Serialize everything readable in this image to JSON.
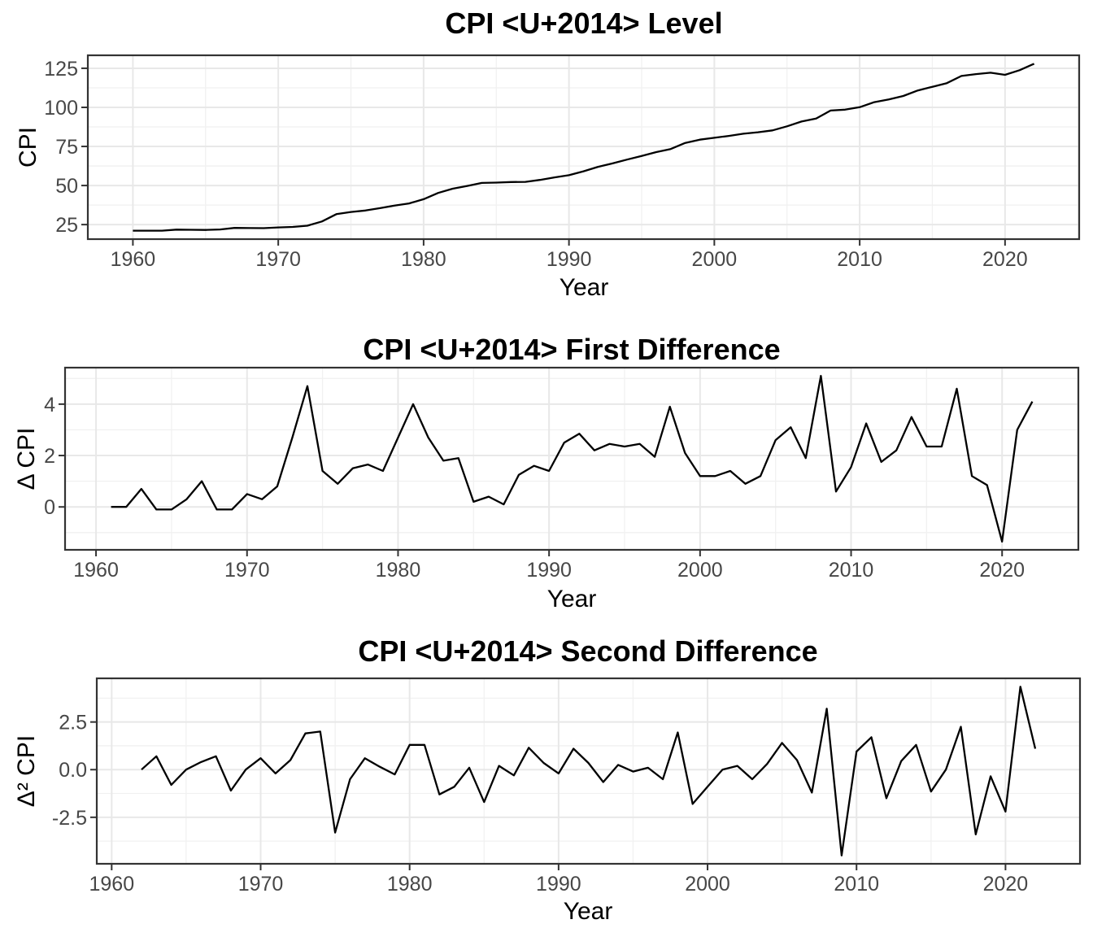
{
  "style": {
    "background": "#ffffff",
    "line_color": "#000000",
    "panel_border_color": "#333333",
    "tick_mark_color": "#333333",
    "major_grid_color": "#e8e8e8",
    "minor_grid_color": "#f1f1f1",
    "tick_label_color": "#474747",
    "title_color": "#000000"
  },
  "chart_data": [
    {
      "type": "line",
      "title": "CPI <U+2014> Level",
      "xlabel": "Year",
      "ylabel": "CPI",
      "grid": "on",
      "legend": "none",
      "xlim": [
        1956.9,
        2025.1
      ],
      "ylim": [
        15.7,
        133.3
      ],
      "x_ticks": [
        1960,
        1970,
        1980,
        1990,
        2000,
        2010,
        2020
      ],
      "x_minor": [
        1965,
        1975,
        1985,
        1995,
        2005,
        2015,
        2025
      ],
      "y_ticks": [
        25,
        50,
        75,
        100,
        125
      ],
      "y_tick_labels": [
        "25",
        "50",
        "75",
        "100",
        "125"
      ],
      "y_minor": [
        37.5,
        62.5,
        87.5,
        112.5
      ],
      "x": [
        1960,
        1961,
        1962,
        1963,
        1964,
        1965,
        1966,
        1967,
        1968,
        1969,
        1970,
        1971,
        1972,
        1973,
        1974,
        1975,
        1976,
        1977,
        1978,
        1979,
        1980,
        1981,
        1982,
        1983,
        1984,
        1985,
        1986,
        1987,
        1988,
        1989,
        1990,
        1991,
        1992,
        1993,
        1994,
        1995,
        1996,
        1997,
        1998,
        1999,
        2000,
        2001,
        2002,
        2003,
        2004,
        2005,
        2006,
        2007,
        2008,
        2009,
        2010,
        2011,
        2012,
        2013,
        2014,
        2015,
        2016,
        2017,
        2018,
        2019,
        2020,
        2021,
        2022
      ],
      "y": [
        21.1,
        21.1,
        21.1,
        21.8,
        21.7,
        21.6,
        21.9,
        22.9,
        22.8,
        22.7,
        23.2,
        23.5,
        24.3,
        27.0,
        31.7,
        33.1,
        34.0,
        35.5,
        37.15,
        38.55,
        41.25,
        45.25,
        47.95,
        49.75,
        51.65,
        51.85,
        52.25,
        52.35,
        53.6,
        55.2,
        56.6,
        59.1,
        61.95,
        64.15,
        66.6,
        68.95,
        71.4,
        73.35,
        77.25,
        79.35,
        80.55,
        81.75,
        83.15,
        84.05,
        85.25,
        87.85,
        90.95,
        92.85,
        97.95,
        98.55,
        100.1,
        103.35,
        105.1,
        107.3,
        110.8,
        113.15,
        115.5,
        120.1,
        121.3,
        122.15,
        120.8,
        123.8,
        127.9
      ]
    },
    {
      "type": "line",
      "title": "CPI <U+2014> First Difference",
      "xlabel": "Year",
      "ylabel": "Δ CPI",
      "grid": "on",
      "legend": "none",
      "xlim": [
        1957.95,
        2025.05
      ],
      "ylim": [
        -1.67,
        5.42
      ],
      "x_ticks": [
        1960,
        1970,
        1980,
        1990,
        2000,
        2010,
        2020
      ],
      "x_minor": [
        1965,
        1975,
        1985,
        1995,
        2005,
        2015,
        2025
      ],
      "y_ticks": [
        0,
        2,
        4
      ],
      "y_tick_labels": [
        "0",
        "2",
        "4"
      ],
      "y_minor": [
        -1,
        1,
        3,
        5
      ],
      "x": [
        1961,
        1962,
        1963,
        1964,
        1965,
        1966,
        1967,
        1968,
        1969,
        1970,
        1971,
        1972,
        1973,
        1974,
        1975,
        1976,
        1977,
        1978,
        1979,
        1980,
        1981,
        1982,
        1983,
        1984,
        1985,
        1986,
        1987,
        1988,
        1989,
        1990,
        1991,
        1992,
        1993,
        1994,
        1995,
        1996,
        1997,
        1998,
        1999,
        2000,
        2001,
        2002,
        2003,
        2004,
        2005,
        2006,
        2007,
        2008,
        2009,
        2010,
        2011,
        2012,
        2013,
        2014,
        2015,
        2016,
        2017,
        2018,
        2019,
        2020,
        2021,
        2022
      ],
      "y": [
        0,
        0,
        0.7,
        -0.1,
        -0.1,
        0.3,
        1,
        -0.1,
        -0.1,
        0.5,
        0.3,
        0.8,
        2.7,
        4.7,
        1.4,
        0.9,
        1.5,
        1.65,
        1.4,
        2.7,
        4,
        2.7,
        1.8,
        1.9,
        0.2,
        0.4,
        0.1,
        1.25,
        1.6,
        1.4,
        2.5,
        2.85,
        2.2,
        2.45,
        2.35,
        2.45,
        1.95,
        3.9,
        2.1,
        1.2,
        1.2,
        1.4,
        0.9,
        1.2,
        2.6,
        3.1,
        1.9,
        5.1,
        0.6,
        1.55,
        3.25,
        1.75,
        2.2,
        3.5,
        2.35,
        2.35,
        4.6,
        1.2,
        0.85,
        -1.35,
        3,
        4.1
      ]
    },
    {
      "type": "line",
      "title": "CPI <U+2014> Second Difference",
      "xlabel": "Year",
      "ylabel": "Δ² CPI",
      "grid": "on",
      "legend": "none",
      "xlim": [
        1959.0,
        2025.0
      ],
      "ylim": [
        -4.94,
        4.79
      ],
      "x_ticks": [
        1960,
        1970,
        1980,
        1990,
        2000,
        2010,
        2020
      ],
      "x_minor": [
        1965,
        1975,
        1985,
        1995,
        2005,
        2015,
        2025
      ],
      "y_ticks": [
        -2.5,
        0,
        2.5
      ],
      "y_tick_labels": [
        "-2.5",
        "0.0",
        "2.5"
      ],
      "y_minor": [
        -3.75,
        -1.25,
        1.25,
        3.75
      ],
      "x": [
        1962,
        1963,
        1964,
        1965,
        1966,
        1967,
        1968,
        1969,
        1970,
        1971,
        1972,
        1973,
        1974,
        1975,
        1976,
        1977,
        1978,
        1979,
        1980,
        1981,
        1982,
        1983,
        1984,
        1985,
        1986,
        1987,
        1988,
        1989,
        1990,
        1991,
        1992,
        1993,
        1994,
        1995,
        1996,
        1997,
        1998,
        1999,
        2000,
        2001,
        2002,
        2003,
        2004,
        2005,
        2006,
        2007,
        2008,
        2009,
        2010,
        2011,
        2012,
        2013,
        2014,
        2015,
        2016,
        2017,
        2018,
        2019,
        2020,
        2021,
        2022
      ],
      "y": [
        0,
        0.7,
        -0.8,
        0,
        0.4,
        0.7,
        -1.1,
        0,
        0.6,
        -0.2,
        0.5,
        1.9,
        2,
        -3.3,
        -0.5,
        0.6,
        0.15,
        -0.25,
        1.3,
        1.3,
        -1.3,
        -0.9,
        0.1,
        -1.7,
        0.2,
        -0.3,
        1.15,
        0.35,
        -0.2,
        1.1,
        0.35,
        -0.65,
        0.25,
        -0.1,
        0.1,
        -0.5,
        1.95,
        -1.8,
        -0.9,
        0,
        0.2,
        -0.5,
        0.3,
        1.4,
        0.5,
        -1.2,
        3.2,
        -4.5,
        0.95,
        1.7,
        -1.5,
        0.45,
        1.3,
        -1.15,
        0,
        2.25,
        -3.4,
        -0.35,
        -2.2,
        4.35,
        1.1
      ]
    }
  ]
}
